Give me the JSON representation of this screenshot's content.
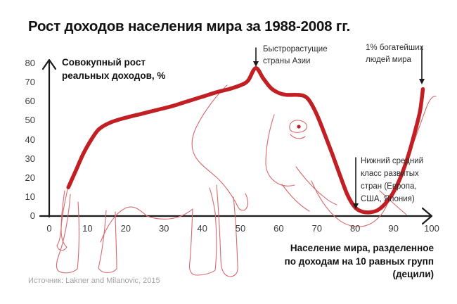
{
  "title": "Рост доходов населения мира за 1988-2008 гг.",
  "source": "Источник: Lakner and Milanovic, 2015",
  "y_axis": {
    "label_lines": [
      "Совокупный рост",
      "реальных доходов, %"
    ],
    "ticks": [
      80,
      70,
      60,
      50,
      40,
      30,
      20,
      10,
      0
    ]
  },
  "x_axis": {
    "ticks": [
      0,
      10,
      20,
      30,
      40,
      50,
      60,
      70,
      80,
      90,
      100
    ],
    "label_lines": [
      "Население мира, разделенное",
      "по доходам на 10 равных групп",
      "(децили)"
    ]
  },
  "annotations": {
    "asia": {
      "lines": [
        "Быстрорастущие",
        "страны Азии"
      ]
    },
    "top1": {
      "lines": [
        "1% богатейших",
        "людей мира"
      ]
    },
    "middle_class": {
      "lines": [
        "Нижний средний",
        "класс развитых",
        "стран (Европа,",
        "США, Япония)"
      ]
    }
  },
  "colors": {
    "curve": "#c21f24",
    "outline": "#d8696d",
    "axis": "#1a1a1a",
    "text": "#111111",
    "tick_text": "#3a3a3a",
    "source_text": "#a3a3a3"
  },
  "chart_data": {
    "type": "line",
    "title": "Рост доходов населения мира за 1988-2008 гг.",
    "xlabel": "Население мира, разделенное по доходам на 10 равных групп (децили)",
    "ylabel": "Совокупный рост реальных доходов, %",
    "xlim": [
      0,
      100
    ],
    "ylim": [
      0,
      80
    ],
    "grid": false,
    "legend": false,
    "series": [
      {
        "name": "Совокупный рост реальных доходов, %",
        "x": [
          5,
          7,
          9,
          11,
          13,
          16,
          20,
          24,
          28,
          32,
          36,
          40,
          44,
          47,
          50,
          52,
          54,
          56,
          58,
          60,
          62,
          64.5,
          66.5,
          68,
          70,
          72,
          74,
          76,
          78,
          80,
          82,
          84,
          86,
          88,
          90,
          92,
          94,
          96,
          97,
          97.7
        ],
        "y": [
          15,
          24,
          33,
          40,
          45.5,
          49,
          51.5,
          53.5,
          55.5,
          57.5,
          60,
          62.5,
          65,
          66.5,
          68.5,
          71,
          77.5,
          72,
          67,
          64.5,
          63.5,
          63.5,
          63,
          60.5,
          53,
          43,
          32.5,
          21.5,
          11,
          4.5,
          2.2,
          2,
          3.2,
          6.8,
          12.5,
          21,
          32.5,
          47,
          55.5,
          66.5
        ]
      }
    ],
    "annotations": [
      {
        "text": "Быстрорастущие страны Азии",
        "points_to_x": 54
      },
      {
        "text": "1% богатейших людей мира",
        "points_to_x": 100
      },
      {
        "text": "Нижний средний класс развитых стран (Европа, США, Япония)",
        "points_to_x": 81
      }
    ]
  }
}
